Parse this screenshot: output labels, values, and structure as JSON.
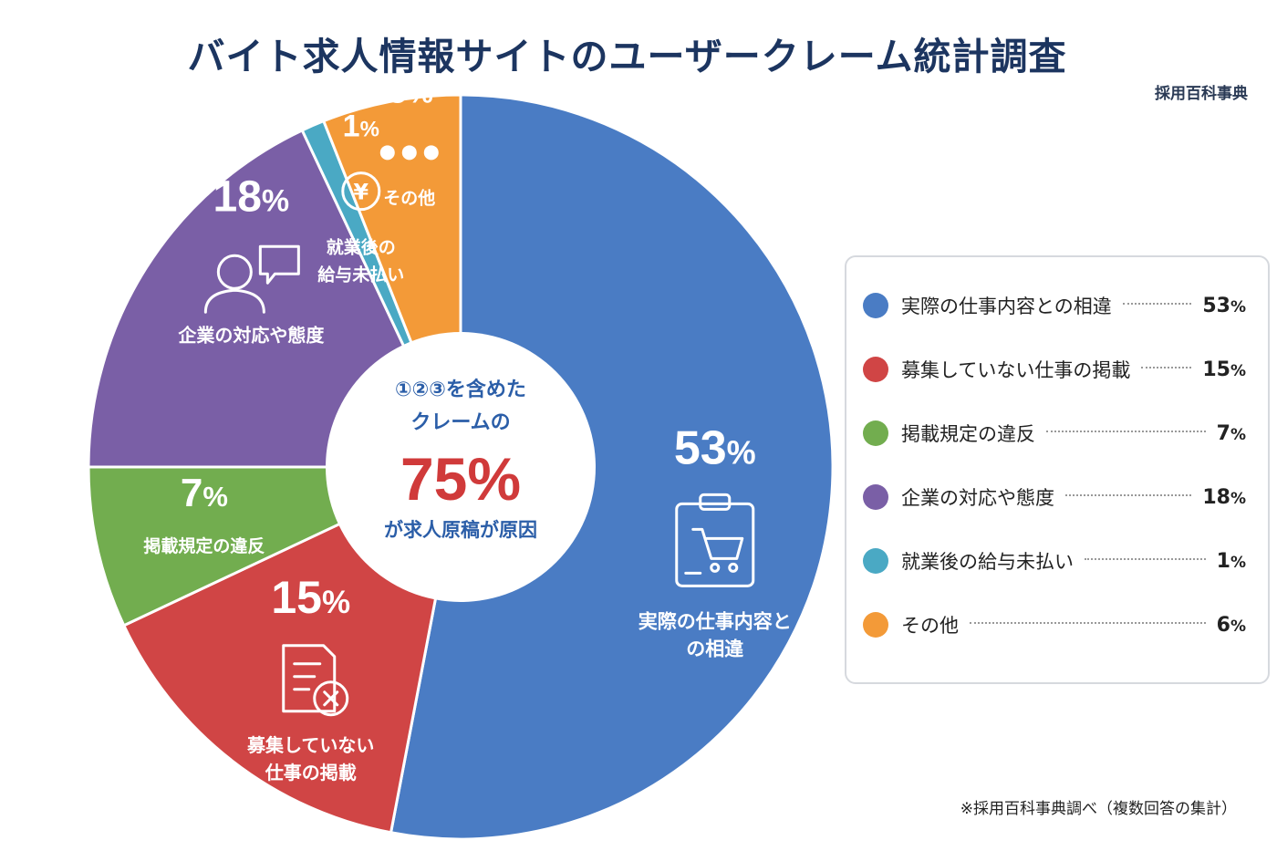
{
  "title": "バイト求人情報サイトのユーザークレーム統計調査",
  "source": "採用百科事典",
  "footnote": "※採用百科事典調べ（複数回答の集計）",
  "center": {
    "line1": "①②③を含めた",
    "line2": "クレームの",
    "value": "75%",
    "line3": "が求人原稿が原因"
  },
  "chart_data": {
    "type": "pie",
    "title": "バイト求人情報サイトのユーザークレーム統計調査",
    "unit": "%",
    "slices": [
      {
        "label": "実際の仕事内容との相違",
        "value": 53,
        "color": "#4a7cc4",
        "icon": "clipboard-cart-icon",
        "slice_label_lines": [
          "実際の仕事内容と",
          "の相違"
        ]
      },
      {
        "label": "募集していない仕事の掲載",
        "value": 15,
        "color": "#d04545",
        "icon": "document-x-icon",
        "slice_label_lines": [
          "募集していない",
          "仕事の掲載"
        ]
      },
      {
        "label": "掲載規定の違反",
        "value": 7,
        "color": "#72ad4f",
        "icon": "",
        "slice_label_lines": [
          "掲載規定の違反"
        ]
      },
      {
        "label": "企業の対応や態度",
        "value": 18,
        "color": "#7a5fa6",
        "icon": "person-speech-icon",
        "slice_label_lines": [
          "企業の対応や態度"
        ]
      },
      {
        "label": "就業後の給与未払い",
        "value": 1,
        "color": "#4aa9c4",
        "icon": "yen-coin-icon",
        "slice_label_lines": [
          "就業後の",
          "給与未払い"
        ]
      },
      {
        "label": "その他",
        "value": 6,
        "color": "#f39a38",
        "icon": "ellipsis-icon",
        "slice_label_lines": [
          "その他"
        ]
      }
    ]
  }
}
